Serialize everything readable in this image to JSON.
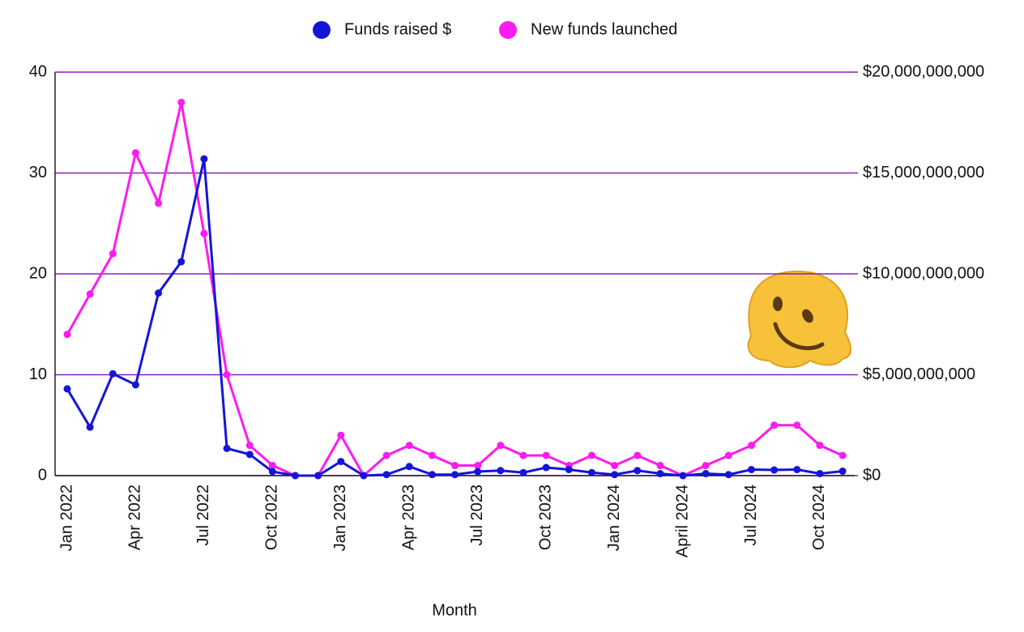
{
  "chart_data": {
    "type": "line",
    "x_label": "Month",
    "categories": [
      "Jan 2022",
      null,
      null,
      "Apr 2022",
      null,
      null,
      "Jul 2022",
      null,
      null,
      "Oct 2022",
      null,
      null,
      "Jan 2023",
      null,
      null,
      "Apr 2023",
      null,
      null,
      "Jul 2023",
      null,
      null,
      "Oct 2023",
      null,
      null,
      "Jan 2024",
      null,
      null,
      "April 2024",
      null,
      null,
      "Jul 2024",
      null,
      null,
      "Oct 2024",
      null
    ],
    "series": [
      {
        "name": "Funds raised $",
        "color": "#1515d6",
        "axis": "y2",
        "values": [
          4300000000,
          2400000000,
          5050000000,
          4500000000,
          9050000000,
          10600000000,
          15700000000,
          1350000000,
          1050000000,
          200000000,
          0,
          0,
          700000000,
          0,
          50000000,
          450000000,
          50000000,
          50000000,
          200000000,
          250000000,
          150000000,
          400000000,
          300000000,
          150000000,
          50000000,
          250000000,
          100000000,
          0,
          100000000,
          50000000,
          300000000,
          280000000,
          300000000,
          100000000,
          220000000
        ]
      },
      {
        "name": "New funds launched",
        "color": "#ff1af0",
        "values": [
          14,
          18,
          22,
          32,
          27,
          37,
          24,
          10,
          3,
          1,
          0,
          0,
          4,
          0,
          2,
          3,
          2,
          1,
          1,
          3,
          2,
          2,
          1,
          2,
          1,
          2,
          1,
          0,
          1,
          2,
          3,
          5,
          5,
          3,
          2
        ]
      }
    ],
    "ylim": [
      0,
      40
    ],
    "yticks": [
      0,
      10,
      20,
      30,
      40
    ],
    "y2lim": [
      0,
      20000000000
    ],
    "y2ticks": [
      {
        "value": 0,
        "label": "$0"
      },
      {
        "value": 5000000000,
        "label": "$5,000,000,000"
      },
      {
        "value": 10000000000,
        "label": "$10,000,000,000"
      },
      {
        "value": 15000000000,
        "label": "$15,000,000,000"
      },
      {
        "value": 20000000000,
        "label": "$20,000,000,000"
      }
    ],
    "grid": true,
    "grid_color": "#8a1fc4",
    "legend": "top"
  }
}
